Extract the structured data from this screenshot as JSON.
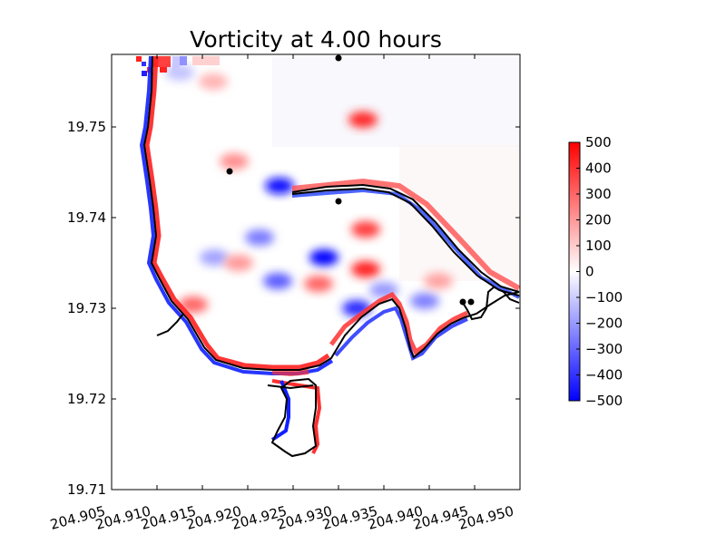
{
  "chart_data": {
    "type": "heatmap",
    "title": "Vorticity at 4.00 hours",
    "xlabel": "",
    "ylabel": "",
    "xlim": [
      204.905,
      204.95
    ],
    "ylim": [
      19.71,
      19.758
    ],
    "xticks": [
      "204.905",
      "204.910",
      "204.915",
      "204.920",
      "204.925",
      "204.930",
      "204.935",
      "204.940",
      "204.945",
      "204.950"
    ],
    "xtick_values": [
      204.905,
      204.91,
      204.915,
      204.92,
      204.925,
      204.93,
      204.935,
      204.94,
      204.945,
      204.95
    ],
    "yticks": [
      "19.71",
      "19.72",
      "19.73",
      "19.74",
      "19.75"
    ],
    "ytick_values": [
      19.71,
      19.72,
      19.73,
      19.74,
      19.75
    ],
    "colorbar": {
      "min": -500,
      "max": 500,
      "ticks": [
        "500",
        "400",
        "300",
        "200",
        "100",
        "0",
        "−100",
        "−200",
        "−300",
        "−400",
        "−500"
      ],
      "tick_values": [
        500,
        400,
        300,
        200,
        100,
        0,
        -100,
        -200,
        -300,
        -400,
        -500
      ],
      "colormap": "bwr",
      "colors": {
        "low": "#0000ff",
        "mid": "#ffffff",
        "high": "#ff0000"
      }
    },
    "gauges": [
      {
        "x": 204.93,
        "y": 19.7576
      },
      {
        "x": 204.918,
        "y": 19.7451
      },
      {
        "x": 204.93,
        "y": 19.7418
      },
      {
        "x": 204.9437,
        "y": 19.7307
      },
      {
        "x": 204.9446,
        "y": 19.7307
      }
    ],
    "vortices": [
      {
        "x": 204.9327,
        "y": 19.7508,
        "v": 420
      },
      {
        "x": 204.9185,
        "y": 19.7462,
        "v": 220
      },
      {
        "x": 204.9235,
        "y": 19.7435,
        "v": -480
      },
      {
        "x": 204.933,
        "y": 19.7387,
        "v": 380
      },
      {
        "x": 204.9284,
        "y": 19.7356,
        "v": -500
      },
      {
        "x": 204.9233,
        "y": 19.733,
        "v": -320
      },
      {
        "x": 204.9213,
        "y": 19.7378,
        "v": -260
      },
      {
        "x": 204.9163,
        "y": 19.7356,
        "v": -180
      },
      {
        "x": 204.933,
        "y": 19.7343,
        "v": 430
      },
      {
        "x": 204.9278,
        "y": 19.7327,
        "v": 300
      },
      {
        "x": 204.932,
        "y": 19.73,
        "v": -420
      },
      {
        "x": 204.919,
        "y": 19.735,
        "v": 200
      },
      {
        "x": 204.914,
        "y": 19.7304,
        "v": 300
      },
      {
        "x": 204.935,
        "y": 19.732,
        "v": -200
      },
      {
        "x": 204.9395,
        "y": 19.7308,
        "v": -250
      },
      {
        "x": 204.941,
        "y": 19.733,
        "v": 180
      },
      {
        "x": 204.9162,
        "y": 19.755,
        "v": 150
      },
      {
        "x": 204.9125,
        "y": 19.756,
        "v": -120
      }
    ]
  }
}
